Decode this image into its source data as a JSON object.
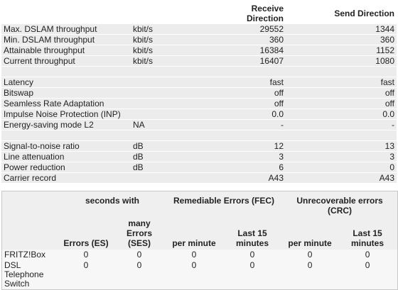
{
  "line_table": {
    "headers": [
      "Receive Direction",
      "Send Direction"
    ],
    "groups": [
      [
        {
          "label": "Max. DSLAM throughput",
          "unit": "kbit/s",
          "receive": "29552",
          "send": "1344"
        },
        {
          "label": "Min. DSLAM throughput",
          "unit": "kbit/s",
          "receive": "360",
          "send": "360"
        },
        {
          "label": "Attainable throughput",
          "unit": "kbit/s",
          "receive": "16384",
          "send": "1152"
        },
        {
          "label": "Current throughput",
          "unit": "kbit/s",
          "receive": "16407",
          "send": "1080"
        }
      ],
      [
        {
          "label": "Latency",
          "receive": "fast",
          "send": "fast"
        },
        {
          "label": "Bitswap",
          "receive": "off",
          "send": "off"
        },
        {
          "label": "Seamless Rate Adaptation",
          "receive": "off",
          "send": "off"
        },
        {
          "label": "Impulse Noise Protection (INP)",
          "receive": "0.0",
          "send": "0.0"
        },
        {
          "label": "Energy-saving mode L2",
          "unit": "NA",
          "receive": "-",
          "send": "-"
        }
      ],
      [
        {
          "label": "Signal-to-noise ratio",
          "unit": "dB",
          "receive": "12",
          "send": "13"
        },
        {
          "label": "Line attenuation",
          "unit": "dB",
          "receive": "3",
          "send": "3"
        },
        {
          "label": "Power reduction",
          "unit": "dB",
          "receive": "6",
          "send": "0"
        },
        {
          "label": "Carrier record",
          "receive": "A43",
          "send": "A43"
        }
      ]
    ]
  },
  "error_table": {
    "group_headers": [
      "seconds with",
      "Remediable Errors (FEC)",
      "Unrecoverable errors (CRC)"
    ],
    "sub_headers": [
      "Errors (ES)",
      "many Errors (SES)",
      "per minute",
      "Last 15 minutes",
      "per minute",
      "Last 15 minutes"
    ],
    "rows": [
      {
        "label": "FRITZ!Box",
        "values": [
          "0",
          "0",
          "0",
          "0",
          "0",
          "0"
        ]
      },
      {
        "label": "DSL Telephone Switch",
        "values": [
          "0",
          "0",
          "0",
          "0",
          "0",
          "0"
        ]
      }
    ]
  }
}
